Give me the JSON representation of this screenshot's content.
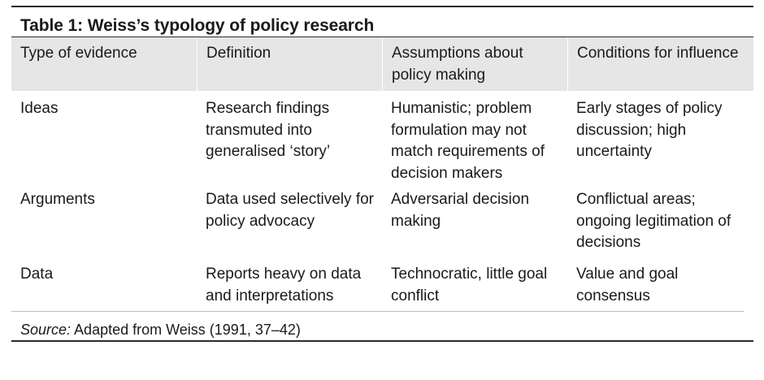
{
  "table": {
    "title": "Table 1: Weiss’s typology of policy research",
    "headers": [
      "Type of evidence",
      "Definition",
      "Assumptions about policy making",
      "Conditions for influence"
    ],
    "rows": [
      {
        "type": "Ideas",
        "definition": "Research findings transmuted into generalised ‘story’",
        "assumptions": "Humanistic; problem formulation may not match requirements of decision makers",
        "conditions": "Early stages of policy discussion; high uncertainty"
      },
      {
        "type": "Arguments",
        "definition": "Data used selectively for policy advocacy",
        "assumptions": "Adversarial decision making",
        "conditions": "Conflictual areas; ongoing legitimation of decisions"
      },
      {
        "type": "Data",
        "definition": "Reports heavy on data and interpretations",
        "assumptions": "Technocratic, little goal conflict",
        "conditions": "Value and goal consensus"
      }
    ],
    "source_label": "Source:",
    "source_text": " Adapted from Weiss (1991, 37–42)"
  }
}
